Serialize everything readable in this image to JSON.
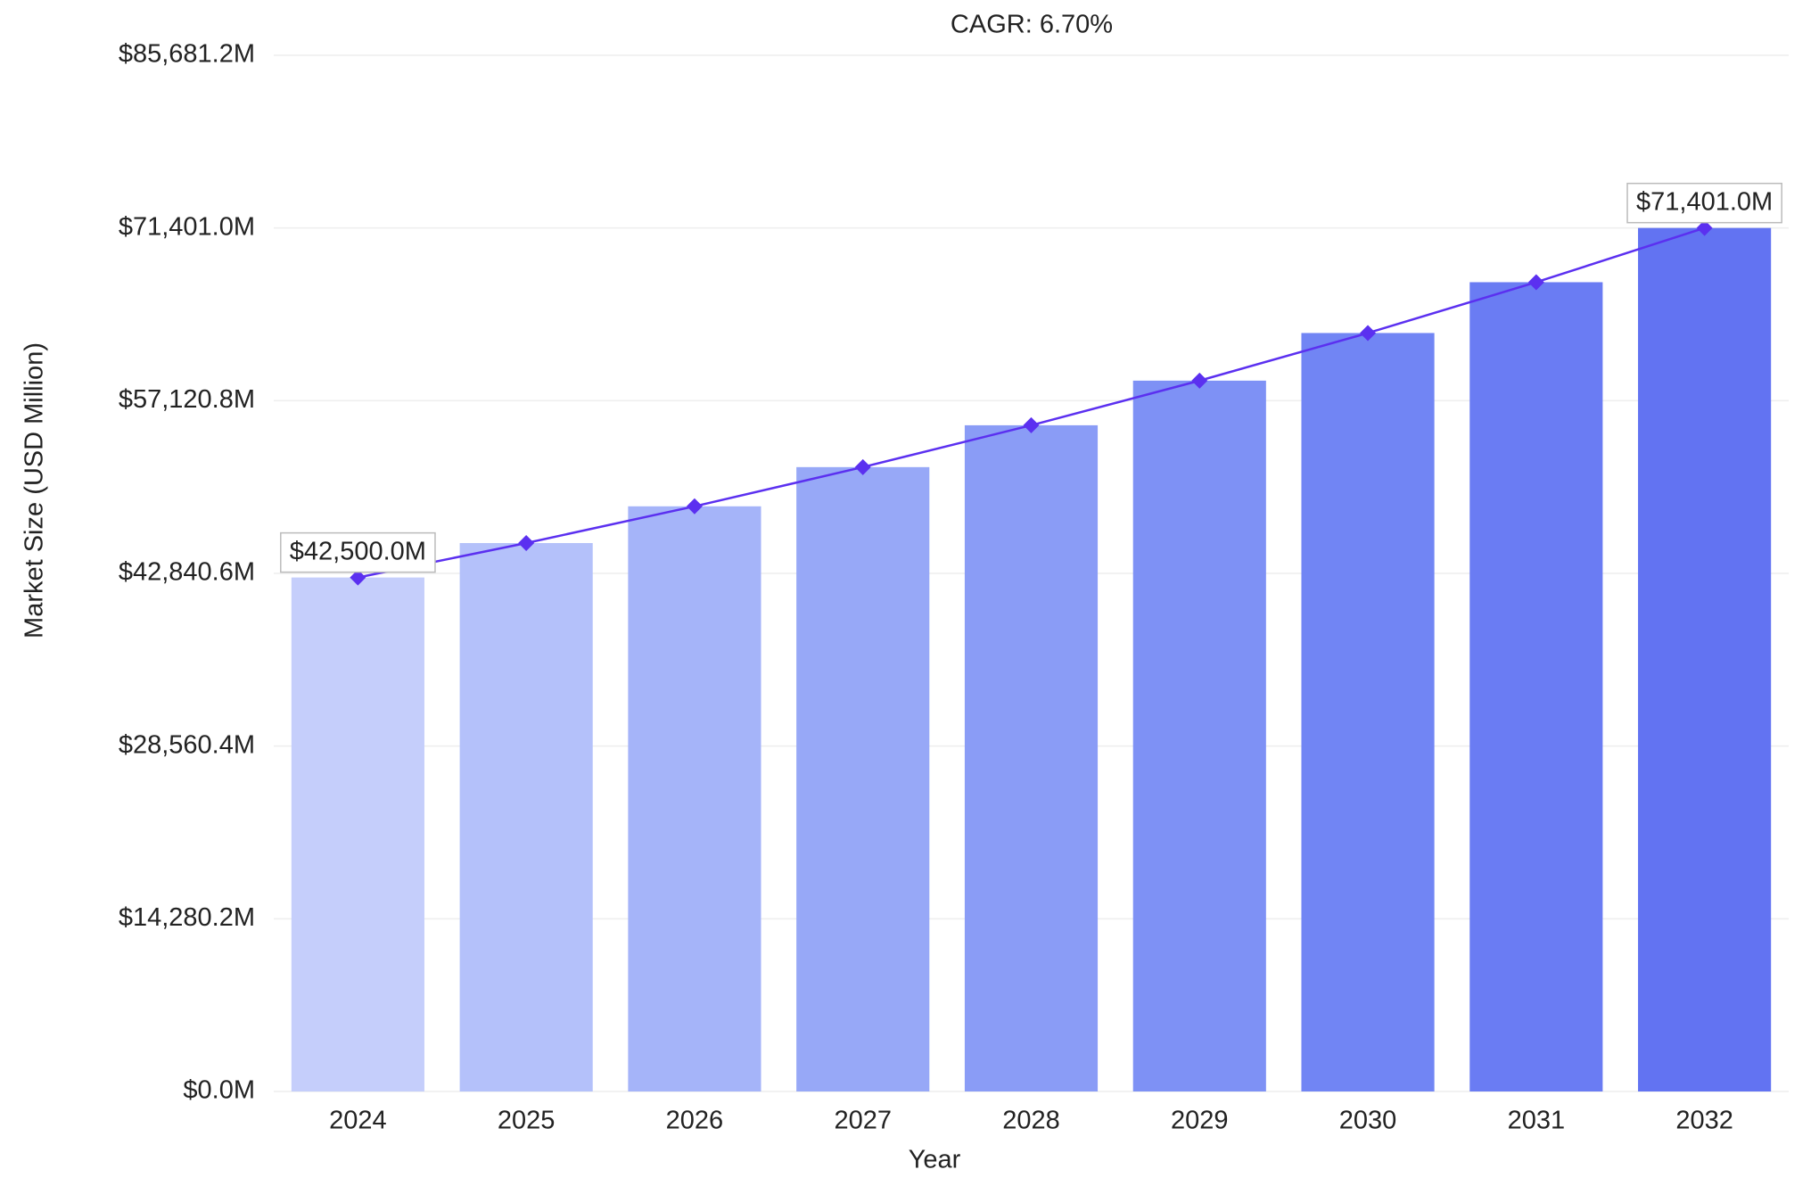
{
  "chart_data": {
    "type": "bar",
    "title": "CAGR: 6.70%",
    "x_label": "Year",
    "y_label": "Market Size (USD Million)",
    "categories": [
      "2024",
      "2025",
      "2026",
      "2027",
      "2028",
      "2029",
      "2030",
      "2031",
      "2032"
    ],
    "values": [
      42500,
      45348,
      48386,
      51628,
      55087,
      58778,
      62716,
      66918,
      71401
    ],
    "value_labels": [
      "$42,500.0M",
      null,
      null,
      null,
      null,
      null,
      null,
      null,
      "$71,401.0M"
    ],
    "colors": [
      "#c5cefb",
      "#b4c1fa",
      "#a5b4f9",
      "#97a8f7",
      "#8a9cf6",
      "#7e91f5",
      "#7185f4",
      "#6a7cf3",
      "#6273f2"
    ],
    "line_color": "#5b30f0",
    "ylim": [
      0,
      85681.2
    ],
    "yticks": [
      {
        "value": 0,
        "label": "$0.0M"
      },
      {
        "value": 14280.2,
        "label": "$14,280.2M"
      },
      {
        "value": 28560.4,
        "label": "$28,560.4M"
      },
      {
        "value": 42840.6,
        "label": "$42,840.6M"
      },
      {
        "value": 57120.8,
        "label": "$57,120.8M"
      },
      {
        "value": 71401.0,
        "label": "$71,401.0M"
      },
      {
        "value": 85681.2,
        "label": "$85,681.2M"
      }
    ],
    "grid": true
  }
}
